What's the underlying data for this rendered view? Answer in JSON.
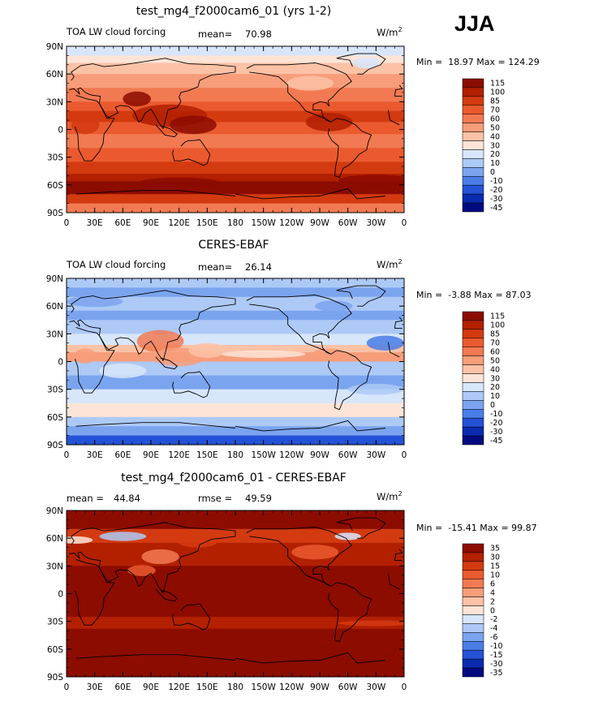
{
  "season": "JJA",
  "units_base": "W/m",
  "units_sup": "2",
  "panels": [
    {
      "title": "test_mg4_f2000cam6_01 (yrs 1-2)",
      "variable_label": "TOA LW cloud forcing",
      "stat1_label": "mean=",
      "stat1_value": "70.98",
      "stat2_label": "",
      "stat2_value": "",
      "min_label": "Min =",
      "min_value": "18.97",
      "max_label": "Max =",
      "max_value": "124.29",
      "colorbar": [
        "115",
        "100",
        "85",
        "70",
        "60",
        "50",
        "40",
        "30",
        "20",
        "10",
        "0",
        "-10",
        "-20",
        "-30",
        "-45"
      ]
    },
    {
      "title": "CERES-EBAF",
      "variable_label": "TOA LW cloud forcing",
      "stat1_label": "mean=",
      "stat1_value": "26.14",
      "stat2_label": "",
      "stat2_value": "",
      "min_label": "Min =",
      "min_value": "-3.88",
      "max_label": "Max =",
      "max_value": "87.03",
      "colorbar": [
        "115",
        "100",
        "85",
        "70",
        "60",
        "50",
        "40",
        "30",
        "20",
        "10",
        "0",
        "-10",
        "-20",
        "-30",
        "-45"
      ]
    },
    {
      "title": "test_mg4_f2000cam6_01 - CERES-EBAF",
      "variable_label": "",
      "stat1_label": "mean =",
      "stat1_value": "44.84",
      "stat2_label": "rmse =",
      "stat2_value": "49.59",
      "min_label": "Min =",
      "min_value": "-15.41",
      "max_label": "Max =",
      "max_value": "99.87",
      "colorbar": [
        "35",
        "30",
        "15",
        "10",
        "6",
        "4",
        "2",
        "0",
        "-2",
        "-4",
        "-6",
        "-10",
        "-15",
        "-30",
        "-35"
      ]
    }
  ],
  "lon_ticks": [
    "0",
    "30E",
    "60E",
    "90E",
    "120E",
    "150E",
    "180",
    "150W",
    "120W",
    "90W",
    "60W",
    "30W",
    "0"
  ],
  "lat_ticks": [
    "90N",
    "60N",
    "30N",
    "0",
    "30S",
    "60S",
    "90S"
  ],
  "colors": {
    "bar": [
      "#8c0c00",
      "#b22000",
      "#d33a10",
      "#ea5a2e",
      "#f27a52",
      "#f79d7a",
      "#fbc2a6",
      "#fde4d6",
      "#d7e6fb",
      "#adc9f6",
      "#7ba4ef",
      "#4a7de6",
      "#2452d6",
      "#0a2bb0",
      "#000a80"
    ]
  },
  "chart_data": [
    {
      "type": "heatmap",
      "title": "test_mg4_f2000cam6_01 (yrs 1-2)",
      "mean": 70.98,
      "min": 18.97,
      "max": 124.29,
      "levels": [
        -45,
        -30,
        -20,
        -10,
        0,
        10,
        20,
        30,
        40,
        50,
        60,
        70,
        85,
        100,
        115
      ]
    },
    {
      "type": "heatmap",
      "title": "CERES-EBAF",
      "mean": 26.14,
      "min": -3.88,
      "max": 87.03,
      "levels": [
        -45,
        -30,
        -20,
        -10,
        0,
        10,
        20,
        30,
        40,
        50,
        60,
        70,
        85,
        100,
        115
      ]
    },
    {
      "type": "heatmap",
      "title": "test_mg4_f2000cam6_01 - CERES-EBAF",
      "mean": 44.84,
      "rmse": 49.59,
      "min": -15.41,
      "max": 99.87,
      "levels": [
        -35,
        -30,
        -15,
        -10,
        -6,
        -4,
        -2,
        0,
        2,
        4,
        6,
        10,
        15,
        30,
        35
      ]
    }
  ]
}
